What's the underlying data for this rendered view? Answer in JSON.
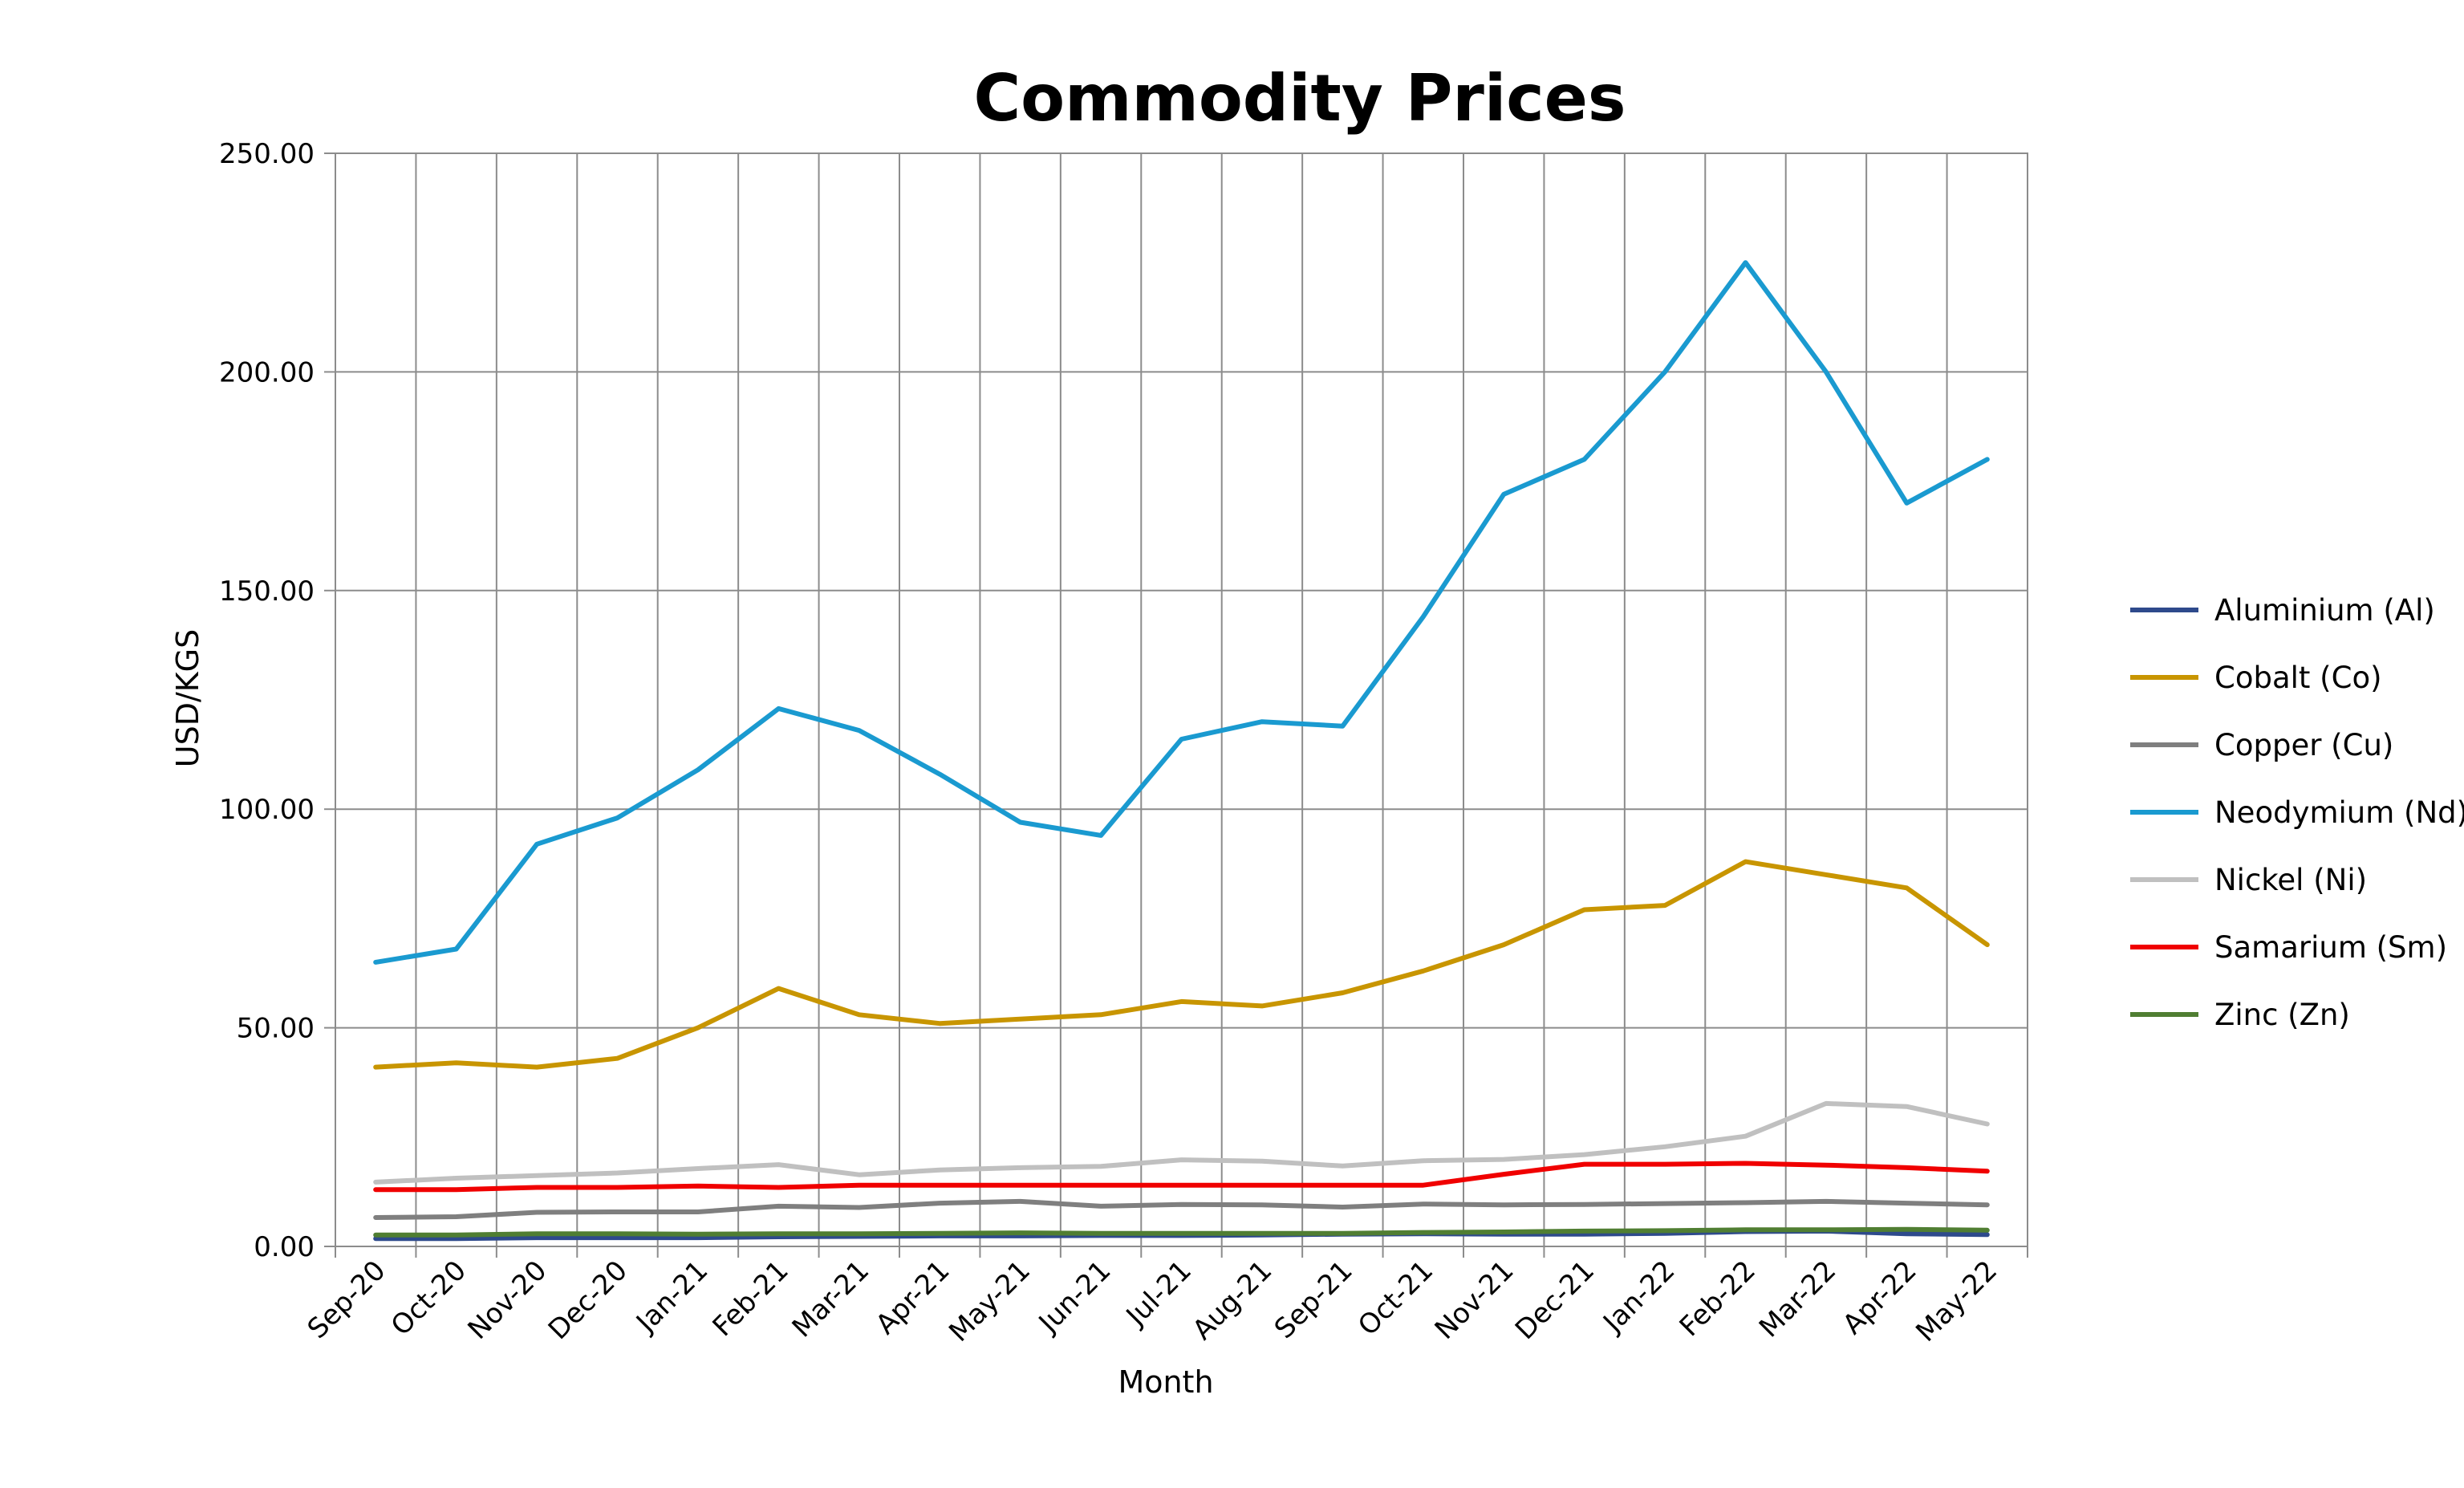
{
  "chart_data": {
    "type": "line",
    "title": "Commodity Prices",
    "xlabel": "Month",
    "ylabel": "USD/KGS",
    "ylim": [
      0,
      250
    ],
    "y_ticks": [
      0,
      50,
      100,
      150,
      200,
      250
    ],
    "y_tick_labels": [
      "0.00",
      "50.00",
      "100.00",
      "150.00",
      "200.00",
      "250.00"
    ],
    "grid": true,
    "legend_position": "right",
    "categories": [
      "Sep-20",
      "Oct-20",
      "Nov-20",
      "Dec-20",
      "Jan-21",
      "Feb-21",
      "Mar-21",
      "Apr-21",
      "May-21",
      "Jun-21",
      "Jul-21",
      "Aug-21",
      "Sep-21",
      "Oct-21",
      "Nov-21",
      "Dec-21",
      "Jan-22",
      "Feb-22",
      "Mar-22",
      "Apr-22",
      "May-22"
    ],
    "series": [
      {
        "name": "Aluminium (Al)",
        "color": "#2E4A8C",
        "values": [
          1.8,
          1.8,
          2.0,
          2.0,
          2.0,
          2.2,
          2.3,
          2.4,
          2.4,
          2.5,
          2.5,
          2.6,
          2.8,
          2.9,
          2.8,
          2.8,
          3.0,
          3.4,
          3.5,
          2.9,
          2.7
        ]
      },
      {
        "name": "Cobalt (Co)",
        "color": "#C89500",
        "values": [
          41,
          42,
          41,
          43,
          50,
          59,
          53,
          51,
          52,
          53,
          56,
          55,
          58,
          63,
          69,
          77,
          78,
          88,
          85,
          82,
          69
        ]
      },
      {
        "name": "Copper (Cu)",
        "color": "#7F7F7F",
        "values": [
          6.6,
          6.8,
          7.8,
          7.9,
          7.9,
          9.2,
          8.9,
          9.9,
          10.3,
          9.2,
          9.6,
          9.5,
          9.0,
          9.7,
          9.5,
          9.6,
          9.8,
          10.0,
          10.3,
          9.9,
          9.5
        ]
      },
      {
        "name": "Neodymium (Nd)",
        "color": "#1A9AD0",
        "values": [
          65,
          68,
          92,
          98,
          109,
          123,
          118,
          108,
          97,
          94,
          116,
          120,
          119,
          144,
          172,
          180,
          200,
          225,
          200,
          170,
          180
        ]
      },
      {
        "name": "Nickel (Ni)",
        "color": "#C0C0C0",
        "values": [
          14.7,
          15.6,
          16.2,
          16.8,
          17.8,
          18.7,
          16.4,
          17.5,
          18.0,
          18.3,
          19.8,
          19.5,
          18.4,
          19.6,
          19.9,
          21.0,
          22.8,
          25.2,
          32.7,
          32.0,
          28.0
        ]
      },
      {
        "name": "Samarium (Sm)",
        "color": "#F00000",
        "values": [
          13.0,
          13.0,
          13.5,
          13.5,
          13.8,
          13.5,
          14.0,
          14.0,
          14.0,
          14.0,
          14.0,
          14.0,
          14.0,
          14.0,
          16.5,
          18.8,
          18.8,
          19.0,
          18.6,
          18.0,
          17.2
        ]
      },
      {
        "name": "Zinc (Zn)",
        "color": "#507E32",
        "values": [
          2.6,
          2.6,
          2.9,
          2.9,
          2.8,
          2.9,
          2.9,
          3.0,
          3.1,
          3.0,
          3.0,
          3.0,
          3.0,
          3.2,
          3.3,
          3.5,
          3.6,
          3.8,
          3.8,
          3.9,
          3.7
        ]
      }
    ]
  }
}
